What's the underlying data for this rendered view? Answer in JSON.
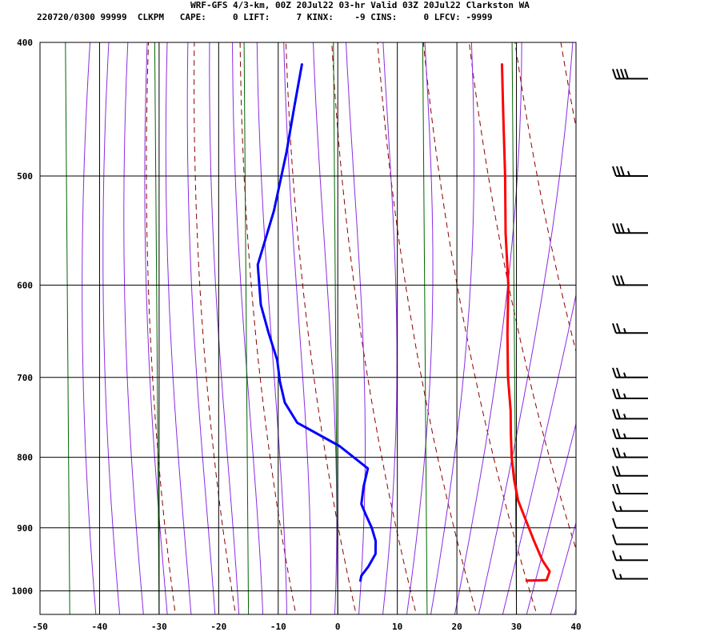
{
  "header": {
    "title": "WRF-GFS 4/3-km, 00Z 20Jul22 03-hr Valid 03Z 20Jul22 Clarkston WA",
    "subtitle": "220720/0300 99999  CLKPM   CAPE:     0 LIFT:     7 KINX:    -9 CINS:     0 LFCV: -9999"
  },
  "colors": {
    "temperature": "#ff0000",
    "dewpoint": "#0000ff",
    "dry_adiabat": "#8b0000",
    "moist_adiabat": "#8a2be2",
    "mixing_ratio": "#006400",
    "grid": "#000000"
  },
  "chart_data": {
    "type": "line",
    "chart_kind": "skew-T log-p sounding",
    "title": "WRF-GFS 4/3-km, 00Z 20Jul22 03-hr Valid 03Z 20Jul22 Clarkston WA",
    "xlabel": "",
    "ylabel": "",
    "x_ticks": [
      -50,
      -40,
      -30,
      -20,
      -10,
      0,
      10,
      20,
      30,
      40
    ],
    "y_ticks": [
      400,
      500,
      600,
      700,
      800,
      900,
      1000
    ],
    "y_scale": "log",
    "y_reversed": true,
    "ylim": [
      400,
      1040
    ],
    "xlim_at_bottom": [
      -50,
      40
    ],
    "grid": true,
    "legend": "none",
    "series": [
      {
        "kind": "temperature",
        "color": "#ff0000",
        "points": [
          {
            "p": 983,
            "t": 28.5
          },
          {
            "p": 982,
            "t": 31.8
          },
          {
            "p": 968,
            "t": 31.5
          },
          {
            "p": 950,
            "t": 29.2
          },
          {
            "p": 920,
            "t": 26.0
          },
          {
            "p": 890,
            "t": 22.8
          },
          {
            "p": 860,
            "t": 19.5
          },
          {
            "p": 830,
            "t": 16.8
          },
          {
            "p": 800,
            "t": 14.3
          },
          {
            "p": 770,
            "t": 12.0
          },
          {
            "p": 740,
            "t": 9.7
          },
          {
            "p": 700,
            "t": 6.1
          },
          {
            "p": 650,
            "t": 1.8
          },
          {
            "p": 600,
            "t": -2.6
          },
          {
            "p": 550,
            "t": -8.0
          },
          {
            "p": 500,
            "t": -13.5
          },
          {
            "p": 450,
            "t": -19.8
          },
          {
            "p": 415,
            "t": -24.6
          }
        ]
      },
      {
        "kind": "dewpoint",
        "color": "#0000ff",
        "points": [
          {
            "p": 983,
            "t": 0.6
          },
          {
            "p": 975,
            "t": 0.3
          },
          {
            "p": 960,
            "t": 0.6
          },
          {
            "p": 940,
            "t": 0.6
          },
          {
            "p": 920,
            "t": -0.6
          },
          {
            "p": 900,
            "t": -2.5
          },
          {
            "p": 880,
            "t": -4.8
          },
          {
            "p": 865,
            "t": -6.5
          },
          {
            "p": 840,
            "t": -7.8
          },
          {
            "p": 815,
            "t": -8.8
          },
          {
            "p": 785,
            "t": -15.7
          },
          {
            "p": 755,
            "t": -25.0
          },
          {
            "p": 730,
            "t": -29.0
          },
          {
            "p": 705,
            "t": -31.8
          },
          {
            "p": 680,
            "t": -34.3
          },
          {
            "p": 650,
            "t": -38.3
          },
          {
            "p": 620,
            "t": -42.3
          },
          {
            "p": 580,
            "t": -46.6
          },
          {
            "p": 530,
            "t": -49.0
          },
          {
            "p": 480,
            "t": -52.5
          },
          {
            "p": 445,
            "t": -55.5
          },
          {
            "p": 415,
            "t": -58.2
          }
        ]
      }
    ],
    "wind_barbs": [
      {
        "p": 980,
        "speed_kt": 15
      },
      {
        "p": 950,
        "speed_kt": 15
      },
      {
        "p": 925,
        "speed_kt": 10
      },
      {
        "p": 900,
        "speed_kt": 10
      },
      {
        "p": 875,
        "speed_kt": 15
      },
      {
        "p": 850,
        "speed_kt": 20
      },
      {
        "p": 825,
        "speed_kt": 20
      },
      {
        "p": 800,
        "speed_kt": 25
      },
      {
        "p": 775,
        "speed_kt": 25
      },
      {
        "p": 750,
        "speed_kt": 25
      },
      {
        "p": 725,
        "speed_kt": 25
      },
      {
        "p": 700,
        "speed_kt": 25
      },
      {
        "p": 650,
        "speed_kt": 25
      },
      {
        "p": 600,
        "speed_kt": 30
      },
      {
        "p": 550,
        "speed_kt": 35
      },
      {
        "p": 500,
        "speed_kt": 35
      },
      {
        "p": 425,
        "speed_kt": 40
      }
    ]
  }
}
